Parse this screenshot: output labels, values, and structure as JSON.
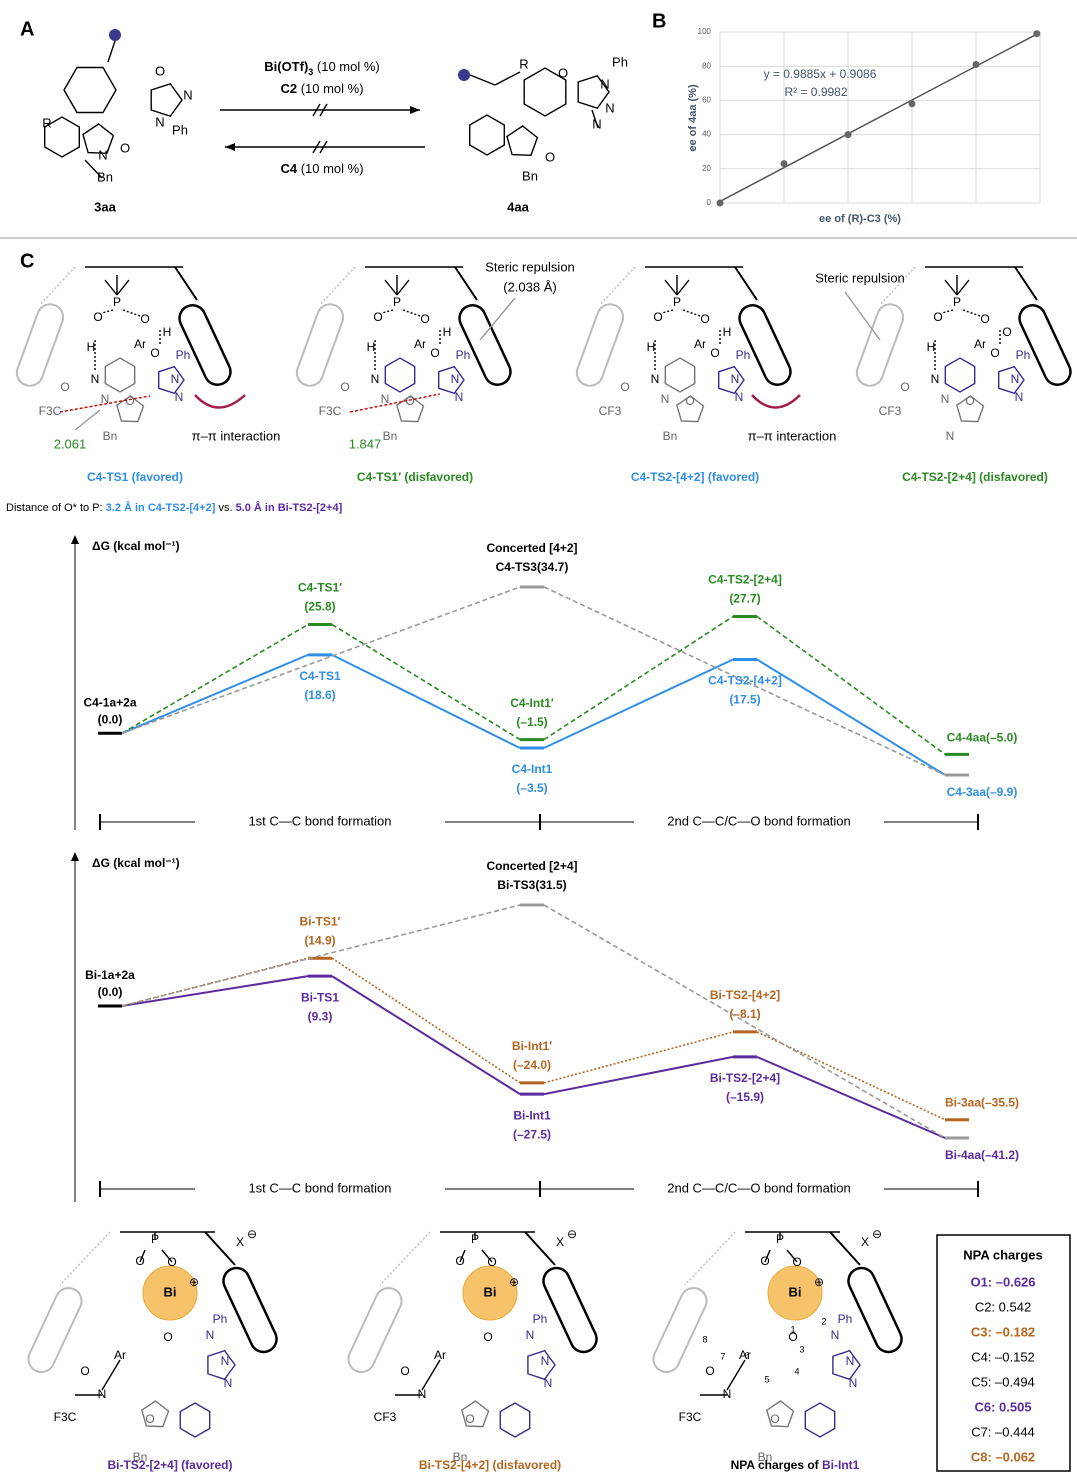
{
  "panel_labels": {
    "a": "A",
    "b": "B",
    "c": "C"
  },
  "scheme": {
    "reactant": {
      "label": "3aa",
      "atoms": [
        "R",
        "N",
        "N",
        "Ph",
        "O",
        "N",
        "O",
        "Bn"
      ]
    },
    "product": {
      "label": "4aa",
      "atoms": [
        "R",
        "O",
        "N",
        "Ph",
        "N",
        "N",
        "O",
        "Bn"
      ]
    },
    "forward": [
      "Bi(OTf)",
      "3",
      " (10 mol %)"
    ],
    "forward2": [
      "C2",
      " (10 mol %)"
    ],
    "reverse": [
      "C4",
      " (10 mol %)"
    ]
  },
  "chart_data": [
    {
      "type": "scatter",
      "x": [
        0,
        20,
        40,
        60,
        80,
        99
      ],
      "values": [
        0,
        23,
        40,
        58,
        81,
        99
      ],
      "color": "#666666",
      "xlabel": "ee of (R)-C3 (%)",
      "ylabel": "ee of 4aa (%)",
      "xlim": [
        0,
        100
      ],
      "ylim": [
        0,
        100
      ],
      "yticks": [
        0,
        20,
        40,
        60,
        80,
        100
      ],
      "xgrid": [
        0,
        20,
        40,
        60,
        80,
        100
      ],
      "grid": true,
      "fit": {
        "slope": 0.9885,
        "intercept": 0.9086,
        "color": "#555555"
      },
      "equation": "y = 0.9885x + 0.9086",
      "r_squared": "R² = 0.9982"
    },
    {
      "type": "energy",
      "y_label": "ΔG (kcal mol⁻¹)",
      "start": {
        "name": "C4-1a+2a",
        "value": 0.0,
        "value_label": "(0.0)"
      },
      "stages": [
        "1st C—C bond formation",
        "2nd C—C/C—O bond formation"
      ],
      "series": [
        {
          "color": "#2f8ee5",
          "dash": "solid",
          "values": [
            18.6,
            -3.5,
            17.5,
            -9.9
          ],
          "names": [
            "C4-TS1",
            "C4-Int1",
            "C4-TS2-[4+2]",
            "C4-3aa"
          ],
          "value_labels": [
            "(18.6)",
            "(–3.5)",
            "(17.5)",
            "(–9.9)"
          ]
        },
        {
          "color": "#2a8a22",
          "dash": "dashed",
          "values": [
            25.8,
            -1.5,
            27.7,
            -5.0
          ],
          "names": [
            "C4-TS1′",
            "C4-Int1′",
            "C4-TS2-[2+4]",
            "C4-4aa"
          ],
          "value_labels": [
            "(25.8)",
            "(–1.5)",
            "(27.7)",
            "(–5.0)"
          ]
        },
        {
          "color": "#999999",
          "dash": "dashed",
          "values": [
            null,
            34.7,
            null,
            -9.9
          ],
          "names": [
            null,
            "C4-TS3",
            null,
            null
          ],
          "value_labels": [
            null,
            "(34.7)",
            null,
            null
          ],
          "header": "Concerted [4+2]"
        }
      ]
    },
    {
      "type": "energy",
      "y_label": "ΔG (kcal mol⁻¹)",
      "start": {
        "name": "Bi-1a+2a",
        "value": 0.0,
        "value_label": "(0.0)"
      },
      "stages": [
        "1st C—C bond formation",
        "2nd C—C/C—O bond formation"
      ],
      "series": [
        {
          "color": "#5b2a9e",
          "dash": "solid",
          "values": [
            9.3,
            -27.5,
            -15.9,
            -41.2
          ],
          "names": [
            "Bi-TS1",
            "Bi-Int1",
            "Bi-TS2-[2+4]",
            "Bi-4aa"
          ],
          "value_labels": [
            "(9.3)",
            "(–27.5)",
            "(–15.9)",
            "(–41.2)"
          ]
        },
        {
          "color": "#b5651d",
          "dash": "dotted",
          "values": [
            14.9,
            -24.0,
            -8.1,
            -35.5
          ],
          "names": [
            "Bi-TS1′",
            "Bi-Int1′",
            "Bi-TS2-[4+2]",
            "Bi-3aa"
          ],
          "value_labels": [
            "(14.9)",
            "(–24.0)",
            "(–8.1)",
            "(–35.5)"
          ]
        },
        {
          "color": "#999999",
          "dash": "dashed",
          "values": [
            null,
            31.5,
            null,
            -41.2
          ],
          "names": [
            null,
            "Bi-TS3",
            null,
            null
          ],
          "value_labels": [
            null,
            "(31.5)",
            null,
            null
          ],
          "header": "Concerted [2+4]"
        }
      ]
    }
  ],
  "structures_top": [
    {
      "caption": "C4-TS1 (favored)",
      "color": "#2f8ee5",
      "atoms": [
        "P",
        "O",
        "O",
        "H",
        "H",
        "N",
        "Ar",
        "O",
        "N",
        "Ph",
        "N",
        "N",
        "O",
        "Bn",
        "O",
        "F3C"
      ]
    },
    {
      "caption": "C4-TS1′ (disfavored)",
      "color": "#2a8a22",
      "atoms": [
        "P",
        "O",
        "O",
        "H",
        "H",
        "N",
        "Ar",
        "O",
        "N",
        "Ph",
        "N",
        "N",
        "O",
        "Bn",
        "O",
        "F3C"
      ]
    },
    {
      "caption": "C4-TS2-[4+2] (favored)",
      "color": "#2f8ee5",
      "atoms": [
        "P",
        "O",
        "O",
        "H",
        "H",
        "N",
        "Ar",
        "O",
        "N",
        "Ph",
        "N",
        "N",
        "O",
        "Bn",
        "O",
        "CF3"
      ]
    },
    {
      "caption": "C4-TS2-[2+4] (disfavored)",
      "color": "#2a8a22",
      "atoms": [
        "P",
        "O",
        "O",
        "H",
        "O",
        "N",
        "Ar",
        "O",
        "N",
        "Ph",
        "N",
        "N",
        "O",
        "N",
        "O",
        "CF3"
      ]
    }
  ],
  "annotations_top": {
    "steric1": "Steric repulsion",
    "steric1_dist": "(2.038 Å)",
    "d1": "2.061",
    "pi1": "π–π interaction",
    "d2": "1.847",
    "pi2": "π–π interaction",
    "steric2": "Steric repulsion"
  },
  "distance_note": [
    "Distance of O* to P: ",
    "3.2 Å in C4-TS2-[4+2]",
    " vs. ",
    "5.0 Å in Bi-TS2-[2+4]"
  ],
  "structures_bottom": [
    {
      "caption": [
        "Bi-TS2-[2+4] (favored)"
      ],
      "atoms": [
        "P",
        "O",
        "O",
        "Bi",
        "⊕",
        "X",
        "⊖",
        "O",
        "Ar",
        "N",
        "O",
        "F3C",
        "N",
        "Ph",
        "N",
        "N",
        "O",
        "Bn"
      ]
    },
    {
      "caption": [
        "Bi-TS2-[4+2] (disfavored)"
      ],
      "atoms": [
        "P",
        "O",
        "O",
        "Bi",
        "⊕",
        "X",
        "⊖",
        "O",
        "Ar",
        "N",
        "O",
        "CF3",
        "N",
        "Ph",
        "N",
        "N",
        "O",
        "Bn"
      ]
    },
    {
      "caption": [
        "NPA charges of ",
        "Bi-Int1"
      ],
      "atoms": [
        "P",
        "O",
        "O",
        "Bi",
        "⊕",
        "X",
        "⊖",
        "O",
        "Ar",
        "N",
        "O",
        "F3C",
        "N",
        "Ph",
        "N",
        "N",
        "O",
        "Bn",
        "1",
        "2",
        "3",
        "4",
        "5",
        "6",
        "7",
        "8"
      ]
    }
  ],
  "npa": {
    "title": "NPA charges",
    "rows": [
      {
        "text": "O1: –0.626",
        "color": "#5b2a9e",
        "bold": true
      },
      {
        "text": "C2: 0.542",
        "color": "#000000",
        "bold": false
      },
      {
        "text": "C3: –0.182",
        "color": "#b5651d",
        "bold": true
      },
      {
        "text": "C4: –0.152",
        "color": "#000000",
        "bold": false
      },
      {
        "text": "C5: –0.494",
        "color": "#000000",
        "bold": false
      },
      {
        "text": "C6: 0.505",
        "color": "#5b2a9e",
        "bold": true
      },
      {
        "text": "C7: –0.444",
        "color": "#000000",
        "bold": false
      },
      {
        "text": "C8: –0.062",
        "color": "#b5651d",
        "bold": true
      }
    ]
  }
}
